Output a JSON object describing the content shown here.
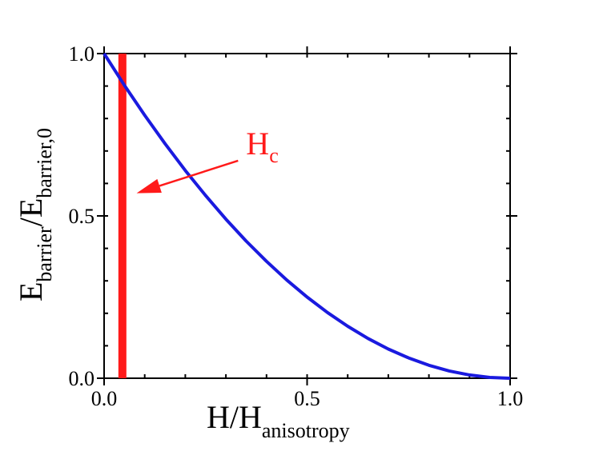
{
  "chart_data": {
    "type": "line",
    "xlabel": {
      "main": "H/H",
      "sub": "anisotropy"
    },
    "ylabel": {
      "main1": "E",
      "sub1": "barrier",
      "mid": "/E",
      "sub2": "barrier,0"
    },
    "xlim": [
      0,
      1
    ],
    "ylim": [
      0,
      1
    ],
    "xticks": [
      0,
      0.5,
      1
    ],
    "xtick_labels": [
      "0.0",
      "0.5",
      "1.0"
    ],
    "yticks": [
      0,
      0.5,
      1
    ],
    "ytick_labels": [
      "0.0",
      "0.5",
      "1.0"
    ],
    "grid": false,
    "series": [
      {
        "color": "#1a1adf",
        "x": [
          0,
          0.05,
          0.1,
          0.15,
          0.2,
          0.25,
          0.3,
          0.35,
          0.4,
          0.45,
          0.5,
          0.55,
          0.6,
          0.65,
          0.7,
          0.75,
          0.8,
          0.85,
          0.9,
          0.95,
          1.0
        ],
        "y": [
          1.0,
          0.9025,
          0.81,
          0.7225,
          0.64,
          0.5625,
          0.49,
          0.4225,
          0.36,
          0.3025,
          0.25,
          0.2025,
          0.16,
          0.1225,
          0.09,
          0.0625,
          0.04,
          0.0225,
          0.01,
          0.0025,
          0.0
        ]
      }
    ],
    "vertical_line": {
      "x": 0.045,
      "color": "#ff1a1a"
    },
    "annotation": {
      "text_main": "H",
      "text_sub": "c",
      "color": "#ff1a1a",
      "arrow_from": [
        0.33,
        0.67
      ],
      "arrow_to": [
        0.08,
        0.57
      ]
    }
  }
}
